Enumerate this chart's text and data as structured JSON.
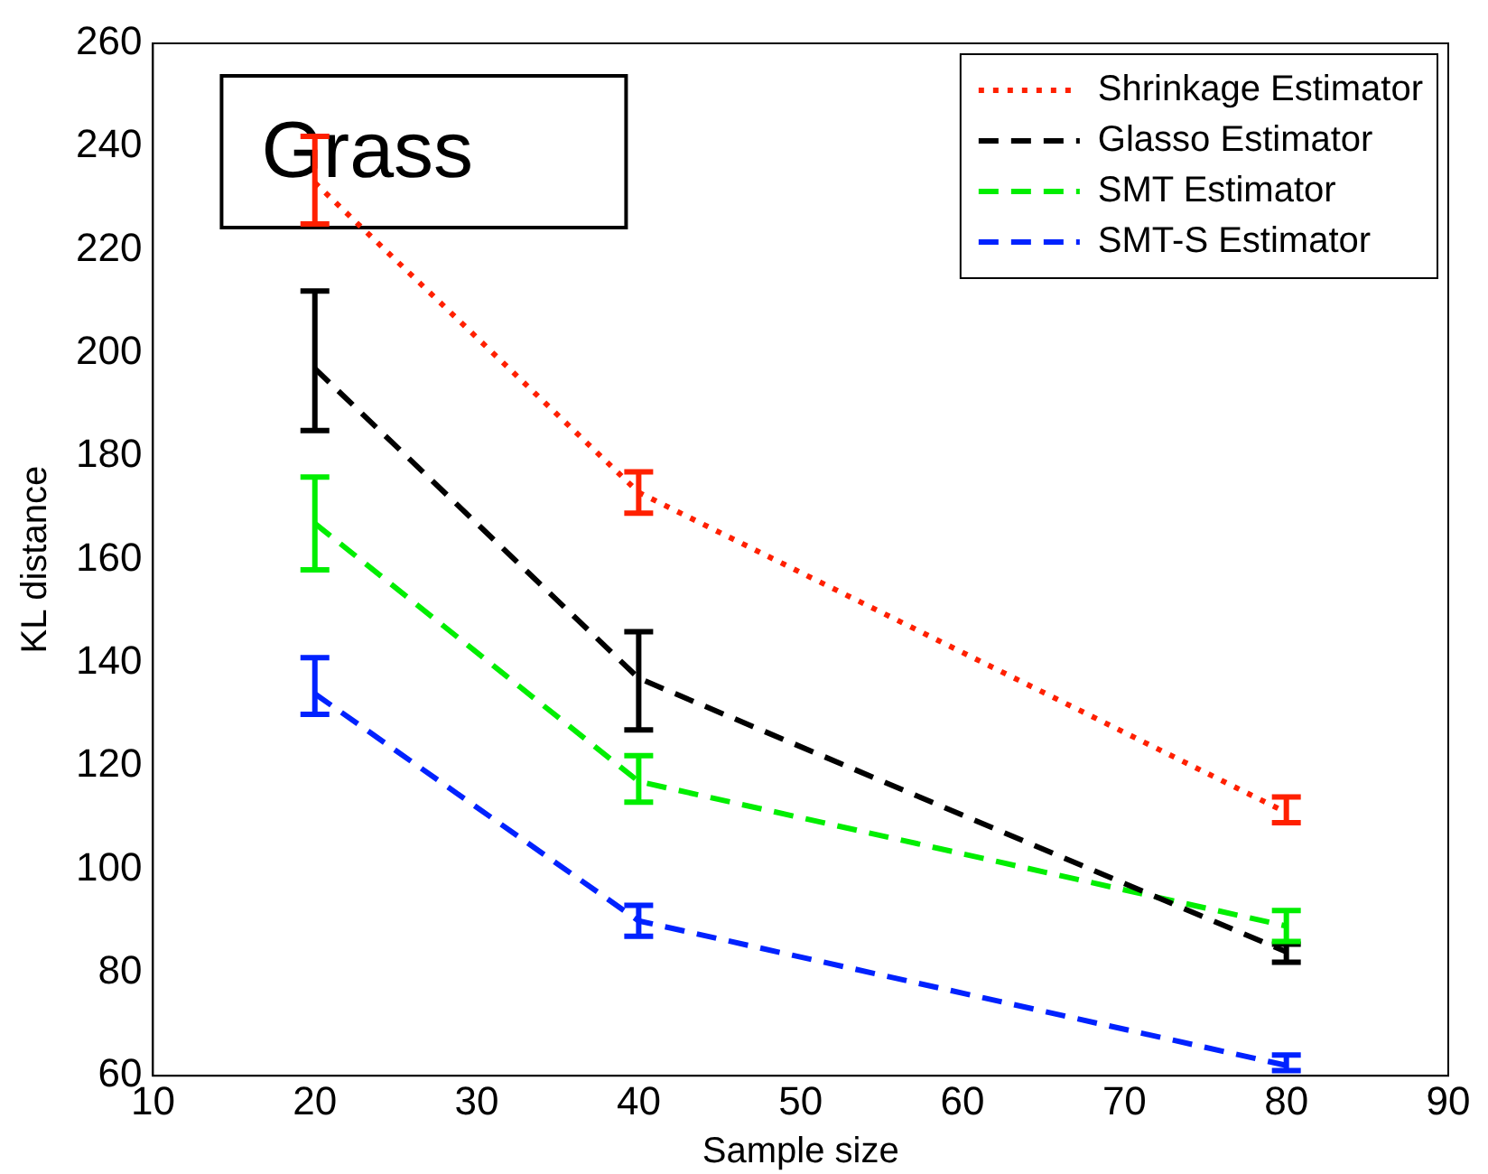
{
  "chart_data": {
    "type": "line",
    "xlabel": "Sample size",
    "ylabel": "KL distance",
    "annotations": [
      "Grass"
    ],
    "x": [
      20,
      40,
      80
    ],
    "series": [
      {
        "name": "Shrinkage Estimator",
        "color": "#ff2000",
        "line_style": "dotted",
        "values": [
          233,
          173,
          111
        ],
        "errors": [
          [
            225,
            242
          ],
          [
            169,
            177
          ],
          [
            109,
            114
          ]
        ]
      },
      {
        "name": "Glasso Estimator",
        "color": "#000000",
        "line_style": "dashed",
        "values": [
          197,
          137,
          84
        ],
        "errors": [
          [
            185,
            212
          ],
          [
            127,
            146
          ],
          [
            82,
            85.5
          ]
        ]
      },
      {
        "name": "SMT Estimator",
        "color": "#00ee00",
        "line_style": "dashed",
        "values": [
          167,
          117,
          89
        ],
        "errors": [
          [
            158,
            176
          ],
          [
            113,
            122
          ],
          [
            86,
            92
          ]
        ]
      },
      {
        "name": "SMT-S Estimator",
        "color": "#0022ff",
        "line_style": "dashed",
        "values": [
          134,
          90,
          62
        ],
        "errors": [
          [
            130,
            141
          ],
          [
            87,
            93
          ],
          [
            61,
            64
          ]
        ]
      }
    ],
    "xlim": [
      10,
      90
    ],
    "xticks": [
      10,
      20,
      30,
      40,
      50,
      60,
      70,
      80,
      90
    ],
    "ylim": [
      60,
      260
    ],
    "yticks": [
      60,
      80,
      100,
      120,
      140,
      160,
      180,
      200,
      220,
      240,
      260
    ],
    "grid": false,
    "legend": "top right",
    "marker": "none"
  }
}
